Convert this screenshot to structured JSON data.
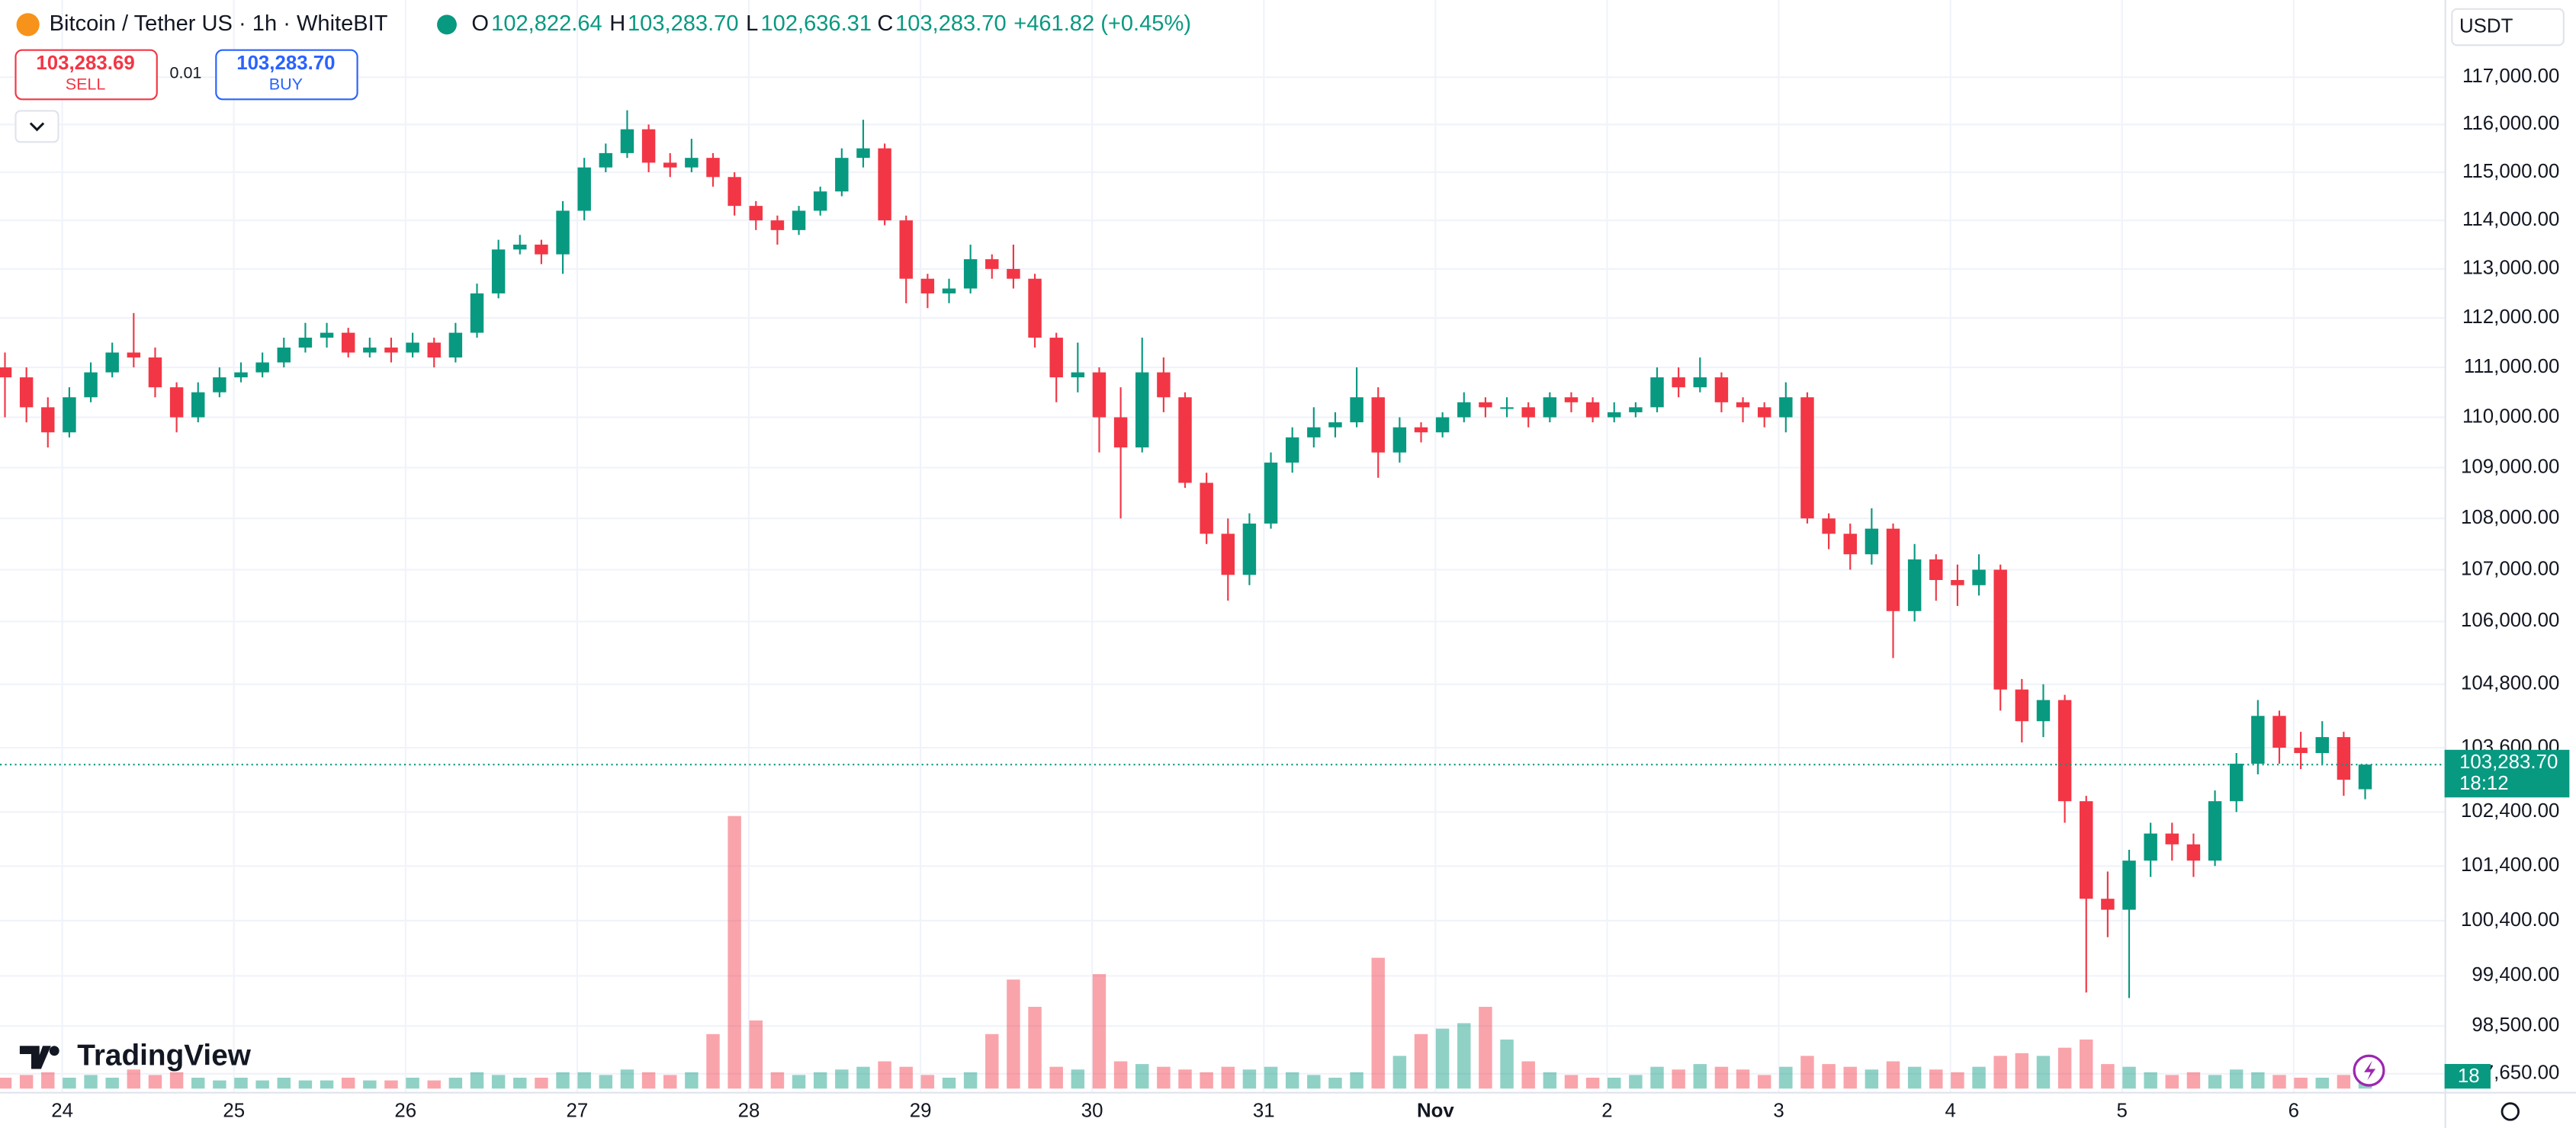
{
  "header": {
    "symbol": "Bitcoin / Tether US · 1h · WhiteBIT",
    "o_label": "O",
    "o": "102,822.64",
    "h_label": "H",
    "h": "103,283.70",
    "l_label": "L",
    "l": "102,636.31",
    "c_label": "C",
    "c": "103,283.70",
    "change": "+461.82 (+0.45%)",
    "sell_price": "103,283.69",
    "sell": "SELL",
    "spread": "0.01",
    "buy_price": "103,283.70",
    "buy": "BUY",
    "currency": "USDT",
    "brand": "TradingView",
    "volume_badge": "18",
    "countdown": "18:12"
  },
  "chart_data": {
    "type": "candlestick",
    "log_scale": true,
    "grid": true,
    "up_color": "#089981",
    "down_color": "#f23645",
    "xlim": [
      -0.23,
      113.7
    ],
    "ylim": [
      97330,
      118650
    ],
    "vlim": [
      0,
      100
    ],
    "last_price": {
      "value": 103283.7,
      "label": "103,283.70"
    },
    "yticks": [
      {
        "value": 117000,
        "label": "117,000.00"
      },
      {
        "value": 116000,
        "label": "116,000.00"
      },
      {
        "value": 115000,
        "label": "115,000.00"
      },
      {
        "value": 114000,
        "label": "114,000.00"
      },
      {
        "value": 113000,
        "label": "113,000.00"
      },
      {
        "value": 112000,
        "label": "112,000.00"
      },
      {
        "value": 111000,
        "label": "111,000.00"
      },
      {
        "value": 110000,
        "label": "110,000.00"
      },
      {
        "value": 109000,
        "label": "109,000.00"
      },
      {
        "value": 108000,
        "label": "108,000.00"
      },
      {
        "value": 107000,
        "label": "107,000.00"
      },
      {
        "value": 106000,
        "label": "106,000.00"
      },
      {
        "value": 104800,
        "label": "104,800.00"
      },
      {
        "value": 103600,
        "label": "103,600.00"
      },
      {
        "value": 102400,
        "label": "102,400.00"
      },
      {
        "value": 101400,
        "label": "101,400.00"
      },
      {
        "value": 100400,
        "label": "100,400.00"
      },
      {
        "value": 99400,
        "label": "99,400.00"
      },
      {
        "value": 98500,
        "label": "98,500.00"
      },
      {
        "value": 97650,
        "label": "97,650.00"
      }
    ],
    "xticks": [
      {
        "value": 2.67,
        "label": "24"
      },
      {
        "value": 10.67,
        "label": "25"
      },
      {
        "value": 18.67,
        "label": "26"
      },
      {
        "value": 26.67,
        "label": "27"
      },
      {
        "value": 34.67,
        "label": "28"
      },
      {
        "value": 42.67,
        "label": "29"
      },
      {
        "value": 50.67,
        "label": "30"
      },
      {
        "value": 58.67,
        "label": "31"
      },
      {
        "value": 66.67,
        "label": "Nov"
      },
      {
        "value": 74.67,
        "label": "2"
      },
      {
        "value": 82.67,
        "label": "3"
      },
      {
        "value": 90.67,
        "label": "4"
      },
      {
        "value": 98.67,
        "label": "5"
      },
      {
        "value": 106.67,
        "label": "6"
      }
    ],
    "open": [
      111000,
      110800,
      110200,
      109700,
      110400,
      110900,
      111300,
      111200,
      110600,
      110000,
      110500,
      110800,
      110900,
      111100,
      111400,
      111600,
      111700,
      111300,
      111400,
      111300,
      111500,
      111200,
      111700,
      112500,
      113400,
      113500,
      113300,
      114200,
      115100,
      115400,
      115900,
      115200,
      115100,
      115300,
      114900,
      114300,
      114000,
      113800,
      114200,
      114600,
      115300,
      115500,
      114000,
      112800,
      112500,
      112600,
      113200,
      113000,
      112800,
      111600,
      110800,
      110900,
      110000,
      109400,
      110900,
      110400,
      108700,
      107700,
      106900,
      107900,
      109100,
      109600,
      109800,
      109900,
      110400,
      109300,
      109800,
      109700,
      110000,
      110300,
      110200,
      110200,
      110000,
      110400,
      110300,
      110000,
      110100,
      110200,
      110800,
      110600,
      110800,
      110300,
      110200,
      110000,
      110400,
      108000,
      107700,
      107300,
      107800,
      106200,
      107200,
      106800,
      106700,
      107000,
      104700,
      104100,
      104500,
      102600,
      100800,
      100600,
      101500,
      102000,
      101800,
      101500,
      102600,
      103300,
      104200,
      103600,
      103500,
      103800,
      102822.64
    ],
    "high": [
      111300,
      111000,
      110400,
      110600,
      111100,
      111500,
      112100,
      111400,
      110700,
      110700,
      111000,
      111100,
      111300,
      111600,
      111900,
      111900,
      111800,
      111600,
      111600,
      111700,
      111600,
      111900,
      112700,
      113600,
      113700,
      113600,
      114400,
      115300,
      115600,
      116300,
      116000,
      115400,
      115700,
      115400,
      115000,
      114400,
      114100,
      114300,
      114700,
      115500,
      116100,
      115600,
      114100,
      112900,
      112800,
      113500,
      113300,
      113500,
      112900,
      111700,
      111500,
      111000,
      110600,
      111600,
      111200,
      110500,
      108900,
      108000,
      108100,
      109300,
      109800,
      110200,
      110100,
      111000,
      110600,
      110000,
      109900,
      110100,
      110500,
      110400,
      110400,
      110300,
      110500,
      110500,
      110400,
      110300,
      110300,
      111000,
      111000,
      111200,
      110900,
      110400,
      110300,
      110700,
      110500,
      108100,
      107900,
      108200,
      107900,
      107500,
      107300,
      107100,
      107300,
      107100,
      104900,
      104800,
      104600,
      102700,
      101300,
      101700,
      102200,
      102200,
      102000,
      102800,
      103500,
      104500,
      104300,
      103900,
      104100,
      103900,
      103283.7
    ],
    "low": [
      110000,
      109900,
      109400,
      109600,
      110300,
      110800,
      111000,
      110400,
      109700,
      109900,
      110400,
      110700,
      110800,
      111000,
      111300,
      111400,
      111200,
      111200,
      111100,
      111200,
      111000,
      111100,
      111600,
      112400,
      113300,
      113100,
      112900,
      114000,
      115000,
      115300,
      115000,
      114900,
      115000,
      114700,
      114100,
      113800,
      113500,
      113700,
      114100,
      114500,
      115100,
      113900,
      112300,
      112200,
      112300,
      112500,
      112800,
      112600,
      111400,
      110300,
      110500,
      109300,
      108000,
      109300,
      110100,
      108600,
      107500,
      106400,
      106700,
      107800,
      108900,
      109400,
      109600,
      109800,
      108800,
      109100,
      109500,
      109600,
      109900,
      110000,
      110000,
      109800,
      109900,
      110100,
      109900,
      109900,
      110000,
      110100,
      110400,
      110500,
      110100,
      109900,
      109800,
      109700,
      107900,
      107400,
      107000,
      107100,
      105300,
      106000,
      106400,
      106300,
      106500,
      104300,
      103700,
      103800,
      102200,
      99100,
      100100,
      99000,
      101200,
      101500,
      101200,
      101400,
      102400,
      103100,
      103300,
      103200,
      103300,
      102700,
      102636.31
    ],
    "close": [
      110800,
      110200,
      109700,
      110400,
      110900,
      111300,
      111200,
      110600,
      110000,
      110500,
      110800,
      110900,
      111100,
      111400,
      111600,
      111700,
      111300,
      111400,
      111300,
      111500,
      111200,
      111700,
      112500,
      113400,
      113500,
      113300,
      114200,
      115100,
      115400,
      115900,
      115200,
      115100,
      115300,
      114900,
      114300,
      114000,
      113800,
      114200,
      114600,
      115300,
      115500,
      114000,
      112800,
      112500,
      112600,
      113200,
      113000,
      112800,
      111600,
      110800,
      110900,
      110000,
      109400,
      110900,
      110400,
      108700,
      107700,
      106900,
      107900,
      109100,
      109600,
      109800,
      109900,
      110400,
      109300,
      109800,
      109700,
      110000,
      110300,
      110200,
      110200,
      110000,
      110400,
      110300,
      110000,
      110100,
      110200,
      110800,
      110600,
      110800,
      110300,
      110200,
      110000,
      110400,
      108000,
      107700,
      107300,
      107800,
      106200,
      107200,
      106800,
      106700,
      107000,
      104700,
      104100,
      104500,
      102600,
      100800,
      100600,
      101500,
      102000,
      101800,
      101500,
      102600,
      103300,
      104200,
      103600,
      103500,
      103800,
      103000,
      103283.7
    ],
    "volume": [
      4,
      5,
      6,
      4,
      5,
      4,
      7,
      5,
      6,
      4,
      3,
      4,
      3,
      4,
      3,
      3,
      4,
      3,
      3,
      4,
      3,
      4,
      6,
      5,
      4,
      4,
      6,
      6,
      5,
      7,
      6,
      5,
      6,
      20,
      100,
      25,
      6,
      5,
      6,
      7,
      8,
      10,
      8,
      5,
      4,
      6,
      20,
      40,
      30,
      8,
      7,
      42,
      10,
      9,
      8,
      7,
      6,
      8,
      7,
      8,
      6,
      5,
      4,
      6,
      48,
      12,
      20,
      22,
      24,
      30,
      18,
      10,
      6,
      5,
      4,
      4,
      5,
      8,
      7,
      9,
      8,
      7,
      5,
      8,
      12,
      9,
      8,
      7,
      10,
      8,
      7,
      6,
      8,
      12,
      13,
      12,
      15,
      18,
      9,
      8,
      6,
      5,
      6,
      5,
      7,
      6,
      5,
      4,
      4,
      5,
      3
    ]
  }
}
